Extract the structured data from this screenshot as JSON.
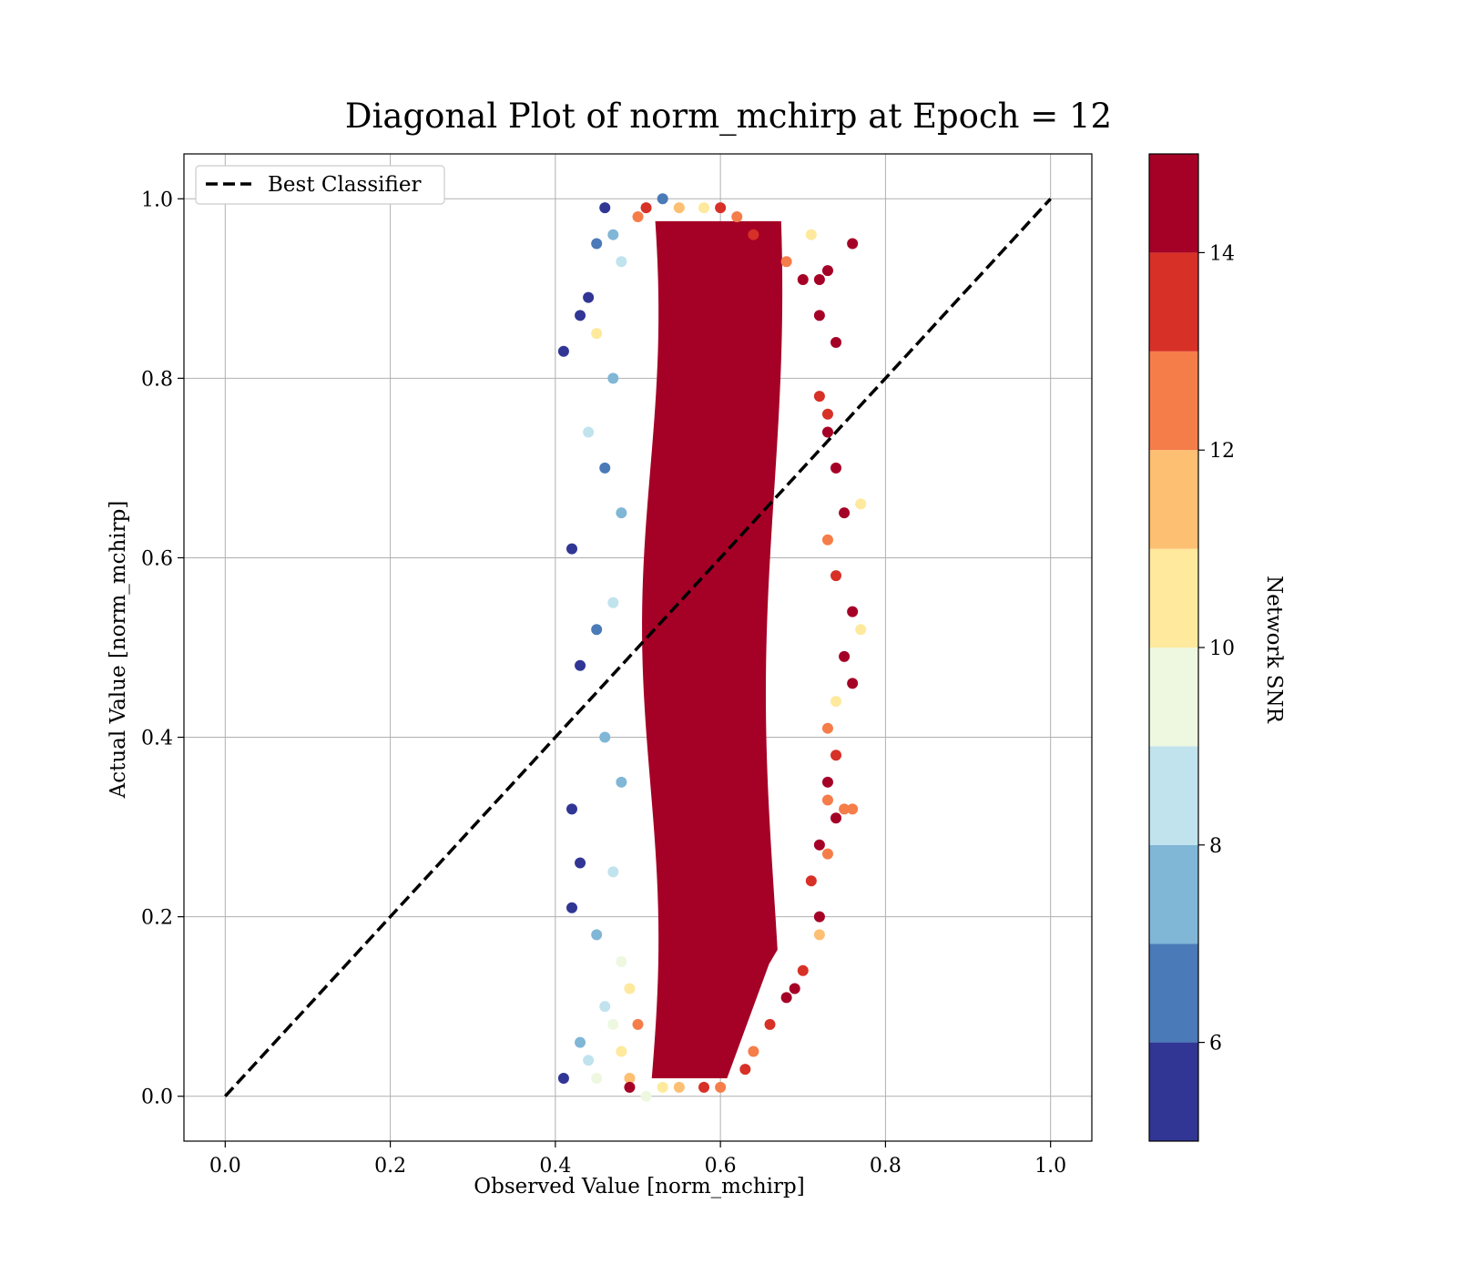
{
  "chart_data": {
    "type": "scatter",
    "title": "Diagonal Plot of norm_mchirp at Epoch = 12",
    "xlabel": "Observed Value [norm_mchirp]",
    "ylabel": "Actual Value [norm_mchirp]",
    "xlim": [
      -0.05,
      1.05
    ],
    "ylim": [
      -0.05,
      1.05
    ],
    "xticks": [
      0.0,
      0.2,
      0.4,
      0.6,
      0.8,
      1.0
    ],
    "yticks": [
      0.0,
      0.2,
      0.4,
      0.6,
      0.8,
      1.0
    ],
    "xtick_labels": [
      "0.0",
      "0.2",
      "0.4",
      "0.6",
      "0.8",
      "1.0"
    ],
    "ytick_labels": [
      "0.0",
      "0.2",
      "0.4",
      "0.6",
      "0.8",
      "1.0"
    ],
    "grid": true,
    "legend": {
      "placement": "upper-left",
      "entries": [
        "Best Classifier"
      ]
    },
    "reference_line": {
      "name": "Best Classifier",
      "x": [
        0.0,
        1.0
      ],
      "y": [
        0.0,
        1.0
      ],
      "style": "dashed",
      "color": "#000000"
    },
    "colorbar": {
      "label": "Network SNR",
      "range": [
        5,
        15
      ],
      "ticks": [
        6,
        8,
        10,
        12,
        14
      ],
      "tick_labels": [
        "6",
        "8",
        "10",
        "12",
        "14"
      ],
      "levels": [
        {
          "min": 5,
          "max": 6,
          "color": "#313695"
        },
        {
          "min": 6,
          "max": 7,
          "color": "#4a7ab7"
        },
        {
          "min": 7,
          "max": 8,
          "color": "#80b6d6"
        },
        {
          "min": 8,
          "max": 9,
          "color": "#c0e3ee"
        },
        {
          "min": 9,
          "max": 10,
          "color": "#eef8e0"
        },
        {
          "min": 10,
          "max": 11,
          "color": "#fee99d"
        },
        {
          "min": 11,
          "max": 12,
          "color": "#fdbf71"
        },
        {
          "min": 12,
          "max": 13,
          "color": "#f57d4a"
        },
        {
          "min": 13,
          "max": 14,
          "color": "#d73027"
        },
        {
          "min": 14,
          "max": 15,
          "color": "#a50026"
        }
      ]
    },
    "points_summary": "dense vertical band; observed values ~0.41–0.77 across actual values 0.0–1.0, centered near observed 0.57; high SNR (>14) points dominate the core, lower SNR points on the left edge",
    "points": [
      [
        0.41,
        0.83,
        5.5
      ],
      [
        0.43,
        0.87,
        5.4
      ],
      [
        0.44,
        0.89,
        5.8
      ],
      [
        0.45,
        0.95,
        6.3
      ],
      [
        0.46,
        0.99,
        5.2
      ],
      [
        0.42,
        0.61,
        5.6
      ],
      [
        0.43,
        0.48,
        5.3
      ],
      [
        0.42,
        0.32,
        5.9
      ],
      [
        0.43,
        0.26,
        5.7
      ],
      [
        0.42,
        0.21,
        5.5
      ],
      [
        0.41,
        0.02,
        5.8
      ],
      [
        0.43,
        0.06,
        7.5
      ],
      [
        0.44,
        0.04,
        8.5
      ],
      [
        0.45,
        0.02,
        9.5
      ],
      [
        0.44,
        0.74,
        8.6
      ],
      [
        0.45,
        0.85,
        10.5
      ],
      [
        0.46,
        0.7,
        6.5
      ],
      [
        0.45,
        0.52,
        6.8
      ],
      [
        0.46,
        0.4,
        7.2
      ],
      [
        0.45,
        0.18,
        7.6
      ],
      [
        0.46,
        0.1,
        8.8
      ],
      [
        0.47,
        0.08,
        9.4
      ],
      [
        0.48,
        0.05,
        10.6
      ],
      [
        0.49,
        0.02,
        11.5
      ],
      [
        0.47,
        0.96,
        7.1
      ],
      [
        0.48,
        0.93,
        8.2
      ],
      [
        0.47,
        0.8,
        7.4
      ],
      [
        0.48,
        0.65,
        7.9
      ],
      [
        0.47,
        0.55,
        8.1
      ],
      [
        0.48,
        0.35,
        7.7
      ],
      [
        0.47,
        0.25,
        8.3
      ],
      [
        0.48,
        0.15,
        9.6
      ],
      [
        0.49,
        0.12,
        10.2
      ],
      [
        0.5,
        0.08,
        12.4
      ],
      [
        0.5,
        0.98,
        12.6
      ],
      [
        0.51,
        0.99,
        13.5
      ],
      [
        0.53,
        1.0,
        6.2
      ],
      [
        0.55,
        0.99,
        11.2
      ],
      [
        0.58,
        0.99,
        10.8
      ],
      [
        0.6,
        0.99,
        13.3
      ],
      [
        0.62,
        0.98,
        12.2
      ],
      [
        0.64,
        0.96,
        13.1
      ],
      [
        0.66,
        0.95,
        14.5
      ],
      [
        0.68,
        0.93,
        12.5
      ],
      [
        0.7,
        0.91,
        14.6
      ],
      [
        0.71,
        0.96,
        10.4
      ],
      [
        0.72,
        0.91,
        14.8
      ],
      [
        0.73,
        0.92,
        14.2
      ],
      [
        0.76,
        0.95,
        14.7
      ],
      [
        0.72,
        0.87,
        14.3
      ],
      [
        0.74,
        0.84,
        14.9
      ],
      [
        0.72,
        0.78,
        13.4
      ],
      [
        0.73,
        0.76,
        13.8
      ],
      [
        0.73,
        0.74,
        14.5
      ],
      [
        0.74,
        0.7,
        14.1
      ],
      [
        0.75,
        0.65,
        14.8
      ],
      [
        0.77,
        0.66,
        10.7
      ],
      [
        0.73,
        0.62,
        12.8
      ],
      [
        0.74,
        0.58,
        13.6
      ],
      [
        0.76,
        0.54,
        14.4
      ],
      [
        0.77,
        0.52,
        10.3
      ],
      [
        0.75,
        0.49,
        14.6
      ],
      [
        0.76,
        0.46,
        14.2
      ],
      [
        0.74,
        0.44,
        10.9
      ],
      [
        0.73,
        0.41,
        12.9
      ],
      [
        0.74,
        0.38,
        13.7
      ],
      [
        0.73,
        0.35,
        14.5
      ],
      [
        0.73,
        0.33,
        12.7
      ],
      [
        0.75,
        0.32,
        12.3
      ],
      [
        0.76,
        0.32,
        12.1
      ],
      [
        0.74,
        0.31,
        14.3
      ],
      [
        0.72,
        0.28,
        14.7
      ],
      [
        0.73,
        0.27,
        12.6
      ],
      [
        0.71,
        0.24,
        13.9
      ],
      [
        0.72,
        0.2,
        14.4
      ],
      [
        0.72,
        0.18,
        11.4
      ],
      [
        0.7,
        0.14,
        13.2
      ],
      [
        0.69,
        0.12,
        14.6
      ],
      [
        0.68,
        0.11,
        14.9
      ],
      [
        0.66,
        0.08,
        13.8
      ],
      [
        0.64,
        0.05,
        12.9
      ],
      [
        0.63,
        0.03,
        13.6
      ],
      [
        0.6,
        0.01,
        12.3
      ],
      [
        0.58,
        0.01,
        13.5
      ],
      [
        0.55,
        0.01,
        11.6
      ],
      [
        0.53,
        0.01,
        10.4
      ],
      [
        0.51,
        0.0,
        9.7
      ],
      [
        0.49,
        0.01,
        14.7
      ]
    ]
  }
}
